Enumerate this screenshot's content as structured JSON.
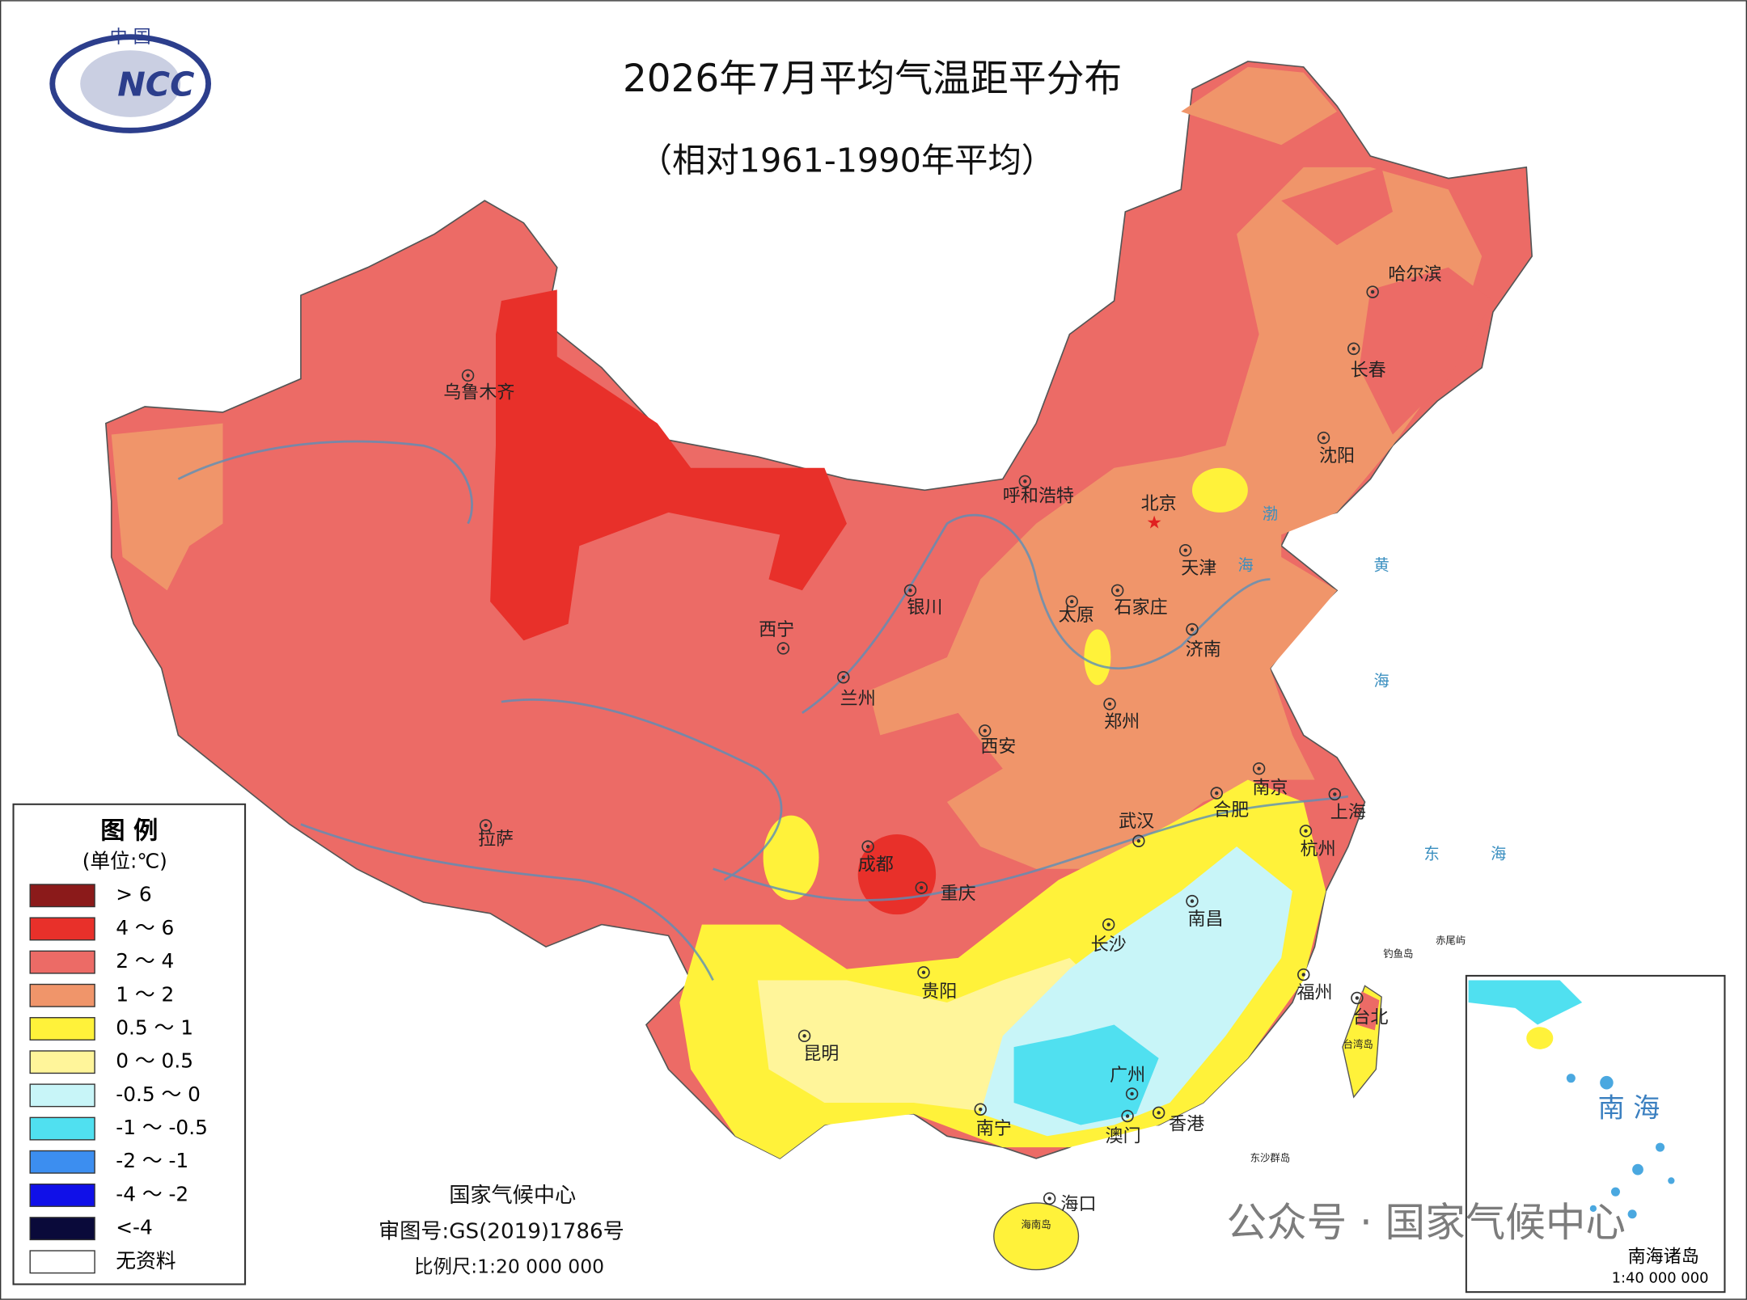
{
  "header": {
    "title": "2026年7月平均气温距平分布",
    "subtitle": "（相对1961-1990年平均）",
    "logo_top": "中 国",
    "logo_text": "NCC"
  },
  "legend": {
    "title": "图 例",
    "unit": "(单位:℃)",
    "items": [
      {
        "label": "> 6",
        "color": "#8b1a1a"
      },
      {
        "label": "4 ～ 6",
        "color": "#e8302a"
      },
      {
        "label": "2 ～ 4",
        "color": "#ec6b66"
      },
      {
        "label": "1 ～ 2",
        "color": "#f0956a"
      },
      {
        "label": "0.5 ～ 1",
        "color": "#fff23a"
      },
      {
        "label": "0 ～ 0.5",
        "color": "#fff59a"
      },
      {
        "label": "-0.5 ～ 0",
        "color": "#c8f5f8"
      },
      {
        "label": "-1 ～ -0.5",
        "color": "#50e0f0"
      },
      {
        "label": "-2 ～ -1",
        "color": "#3c8ef0"
      },
      {
        "label": "-4 ～ -2",
        "color": "#1010e8"
      },
      {
        "label": "<-4",
        "color": "#0a0a3a"
      },
      {
        "label": "无资料",
        "color": "#ffffff"
      }
    ]
  },
  "map": {
    "cities": [
      "乌鲁木齐",
      "呼和浩特",
      "北京",
      "天津",
      "石家庄",
      "太原",
      "银川",
      "西宁",
      "兰州",
      "济南",
      "郑州",
      "西安",
      "南京",
      "合肥",
      "上海",
      "武汉",
      "杭州",
      "拉萨",
      "成都",
      "重庆",
      "南昌",
      "长沙",
      "贵阳",
      "福州",
      "台北",
      "昆明",
      "广州",
      "南宁",
      "澳门",
      "香港",
      "海口",
      "哈尔滨",
      "长春",
      "沈阳"
    ],
    "seas": [
      "渤",
      "海",
      "黄",
      "海",
      "东",
      "海"
    ],
    "islands": [
      "钓鱼岛",
      "赤尾屿",
      "台湾岛",
      "海南岛",
      "东沙群岛"
    ]
  },
  "inset": {
    "sea": "南 海",
    "title": "南海诸岛",
    "scale": "1:40 000 000"
  },
  "footer": {
    "org": "国家气候中心",
    "approval": "审图号:GS(2019)1786号",
    "scale": "比例尺:1:20 000 000"
  },
  "watermark": "公众号 · 国家气候中心"
}
